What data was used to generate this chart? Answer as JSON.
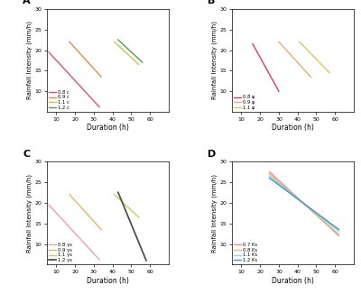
{
  "xlabel": "Duration (h)",
  "ylabel": "Rainfall Intensity (mm/h)",
  "xlim": [
    5,
    70
  ],
  "ylim": [
    5,
    30
  ],
  "xticks": [
    10,
    20,
    30,
    40,
    50,
    60
  ],
  "yticks": [
    10,
    15,
    20,
    25,
    30
  ],
  "panel_A": {
    "lines": [
      {
        "x1": 6,
        "x2": 33,
        "y1": 19.5,
        "y2": 6.2,
        "color": "#e05070",
        "label": "0.8 c",
        "lw": 1.0
      },
      {
        "x1": 17,
        "x2": 34,
        "y1": 22.0,
        "y2": 13.5,
        "color": "#e09050",
        "label": "0.9 c",
        "lw": 1.0
      },
      {
        "x1": 41,
        "x2": 54,
        "y1": 22.0,
        "y2": 16.5,
        "color": "#c8c840",
        "label": "1.1 c",
        "lw": 1.0
      },
      {
        "x1": 43,
        "x2": 56,
        "y1": 22.5,
        "y2": 17.0,
        "color": "#50a050",
        "label": "1.2 c",
        "lw": 1.0
      }
    ],
    "legend_loc": "lower left"
  },
  "panel_B": {
    "lines": [
      {
        "x1": 16,
        "x2": 30,
        "y1": 21.5,
        "y2": 10.0,
        "color": "#d84060",
        "label": "0.8 φ",
        "lw": 1.0
      },
      {
        "x1": 30,
        "x2": 47,
        "y1": 22.0,
        "y2": 13.5,
        "color": "#e0b070",
        "label": "0.9 φ",
        "lw": 1.0
      },
      {
        "x1": 41,
        "x2": 57,
        "y1": 22.0,
        "y2": 14.5,
        "color": "#d8c860",
        "label": "1.1 φ",
        "lw": 1.0
      }
    ],
    "legend_loc": "lower left"
  },
  "panel_C": {
    "lines": [
      {
        "x1": 6,
        "x2": 33,
        "y1": 19.5,
        "y2": 6.2,
        "color": "#e8a0b0",
        "label": "0.8 γs",
        "lw": 1.0
      },
      {
        "x1": 17,
        "x2": 34,
        "y1": 22.0,
        "y2": 13.5,
        "color": "#e0b860",
        "label": "0.9 γs",
        "lw": 1.0
      },
      {
        "x1": 41,
        "x2": 54,
        "y1": 22.0,
        "y2": 16.5,
        "color": "#d0c860",
        "label": "1.1 γs",
        "lw": 1.0
      },
      {
        "x1": 43,
        "x2": 58,
        "y1": 22.5,
        "y2": 6.0,
        "color": "#505050",
        "label": "1.2 γs",
        "lw": 1.3
      }
    ],
    "legend_loc": "lower left"
  },
  "panel_D": {
    "lines": [
      {
        "x1": 25,
        "x2": 62,
        "y1": 27.5,
        "y2": 12.0,
        "color": "#e090a0",
        "label": "0.7 Ks",
        "lw": 1.0
      },
      {
        "x1": 25,
        "x2": 62,
        "y1": 27.0,
        "y2": 12.3,
        "color": "#e8b870",
        "label": "0.8 Ks",
        "lw": 1.0
      },
      {
        "x1": 25,
        "x2": 62,
        "y1": 26.5,
        "y2": 13.0,
        "color": "#90dce8",
        "label": "1.1 Ks",
        "lw": 1.0
      },
      {
        "x1": 25,
        "x2": 62,
        "y1": 26.0,
        "y2": 13.5,
        "color": "#4090c0",
        "label": "1.2 Ks",
        "lw": 1.0
      }
    ],
    "legend_loc": "lower left"
  }
}
